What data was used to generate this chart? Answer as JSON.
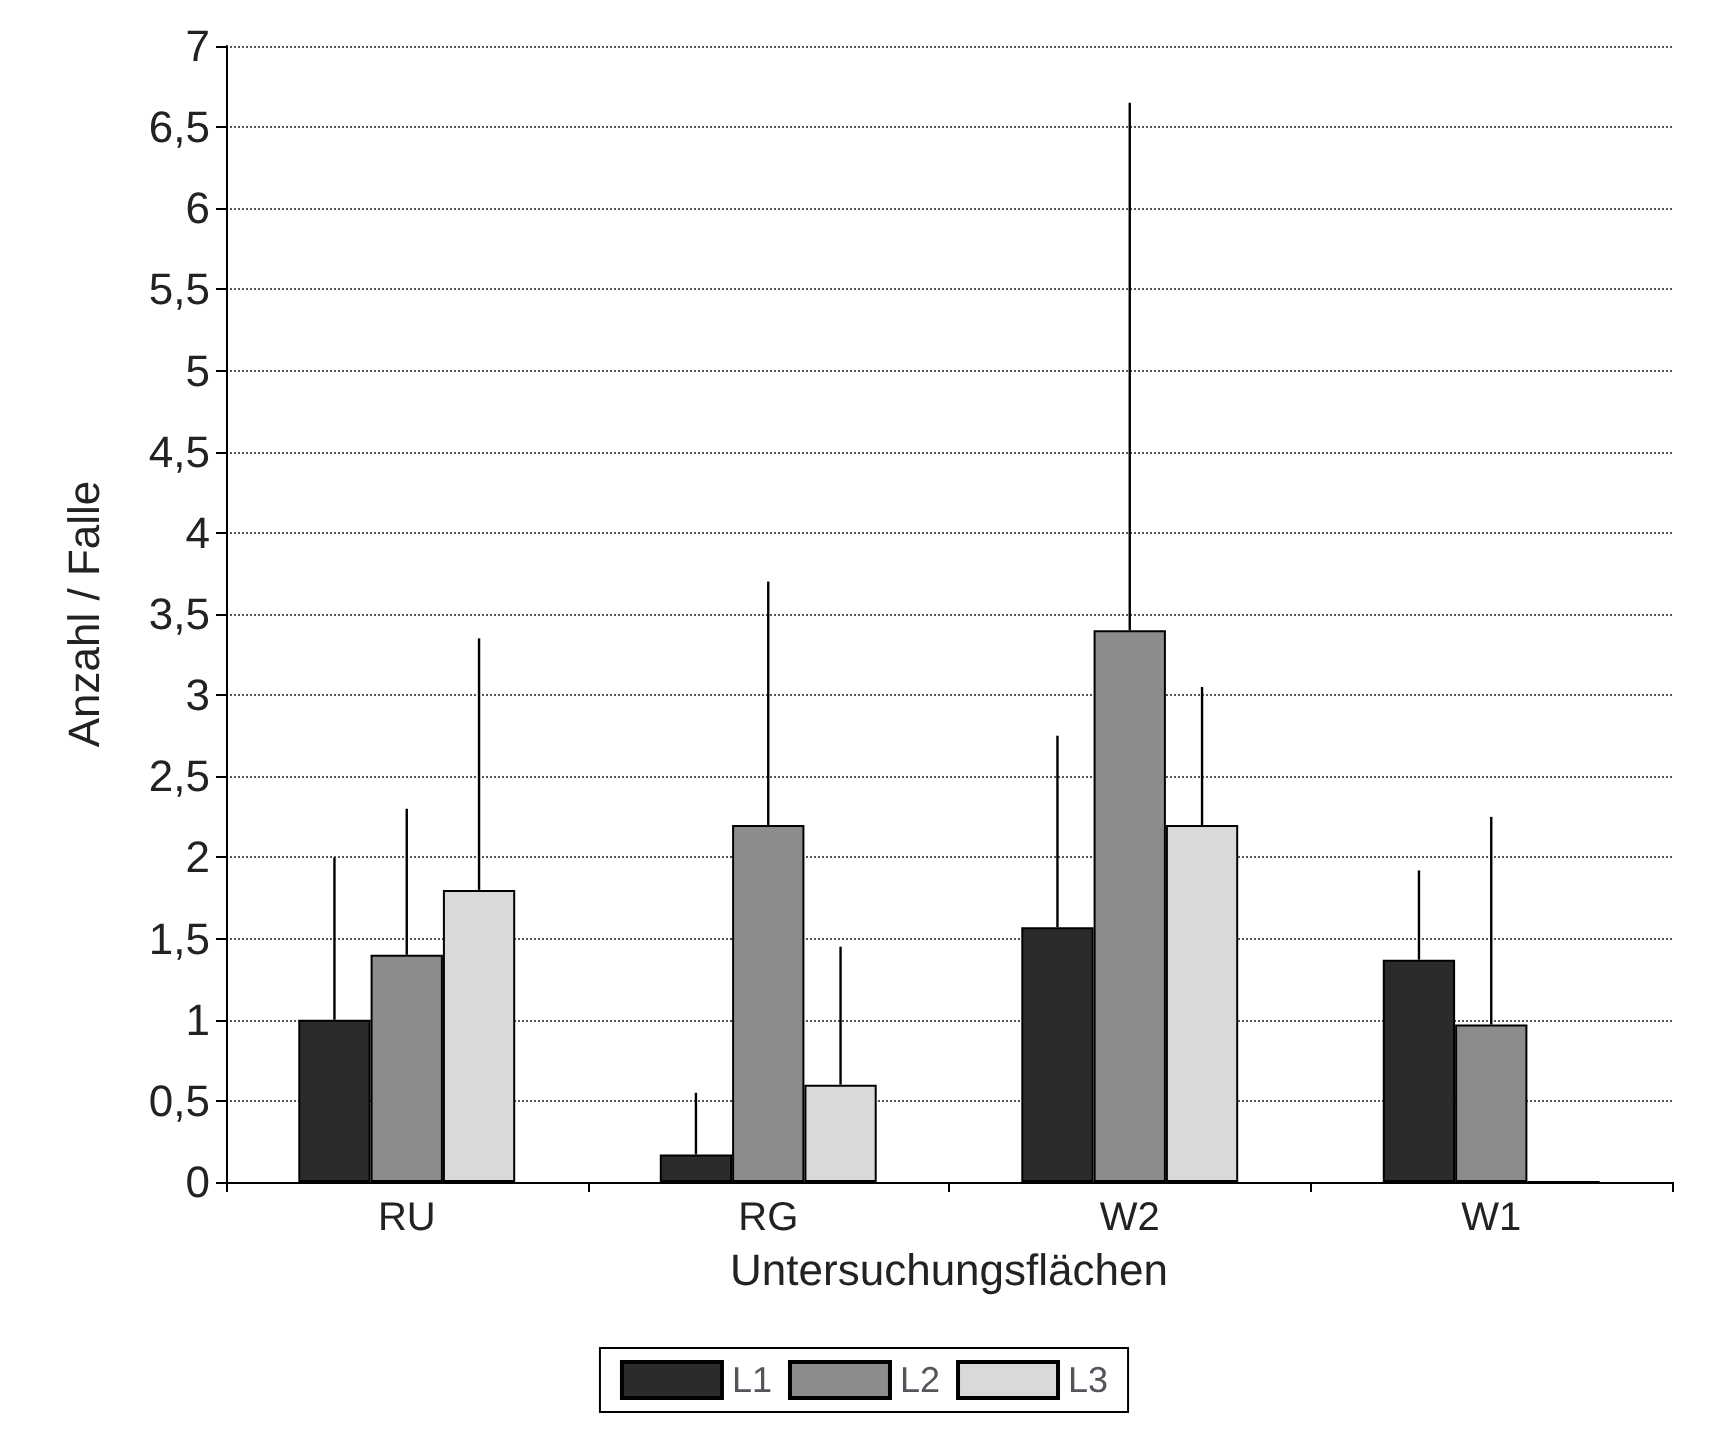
{
  "chart_data": {
    "type": "bar",
    "xlabel": "Untersuchungsflächen",
    "ylabel": "Anzahl / Falle",
    "categories": [
      "RU",
      "RG",
      "W2",
      "W1"
    ],
    "series": [
      {
        "name": "L1",
        "color": "#2b2b2b",
        "values": [
          1.0,
          0.17,
          1.57,
          1.37
        ],
        "errors": [
          [
            1.0,
            2.0
          ],
          [
            0.17,
            0.55
          ],
          [
            1.57,
            2.75
          ],
          [
            1.37,
            1.92
          ]
        ]
      },
      {
        "name": "L2",
        "color": "#8c8c8c",
        "values": [
          1.4,
          2.2,
          3.4,
          0.97
        ],
        "errors": [
          [
            1.4,
            2.3
          ],
          [
            2.2,
            3.7
          ],
          [
            3.4,
            6.65
          ],
          [
            0.97,
            2.25
          ]
        ]
      },
      {
        "name": "L3",
        "color": "#d9d9d9",
        "values": [
          1.8,
          0.6,
          2.2,
          0
        ],
        "errors": [
          [
            1.8,
            3.35
          ],
          [
            0.6,
            1.45
          ],
          [
            2.2,
            3.05
          ],
          null
        ]
      }
    ],
    "ylim": [
      0,
      7
    ],
    "yticks": [
      0,
      {
        "value": 0.5,
        "label": "0,5"
      },
      1,
      {
        "value": 1.5,
        "label": "1,5"
      },
      2,
      {
        "value": 2.5,
        "label": "2,5"
      },
      3,
      {
        "value": 3.5,
        "label": "3,5"
      },
      4,
      {
        "value": 4.5,
        "label": "4,5"
      },
      5,
      {
        "value": 5.5,
        "label": "5,5"
      },
      6,
      {
        "value": 6.5,
        "label": "6,5"
      },
      7
    ],
    "grid": "y",
    "legend": "bottom"
  }
}
